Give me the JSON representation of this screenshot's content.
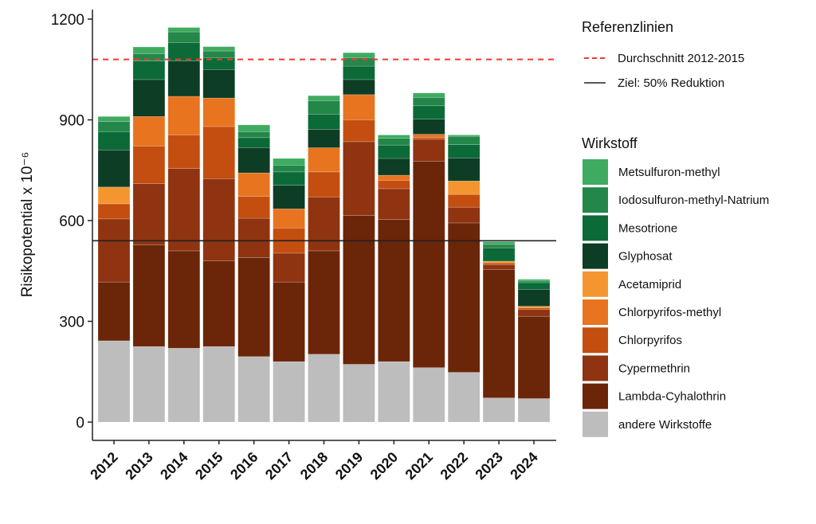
{
  "chart_data": {
    "type": "bar",
    "stacked": true,
    "ylabel": "Risikopotential x 10⁻⁶",
    "ylim": [
      0,
      1200
    ],
    "yticks": [
      0,
      300,
      600,
      900,
      1200
    ],
    "categories": [
      "2012",
      "2013",
      "2014",
      "2015",
      "2016",
      "2017",
      "2018",
      "2019",
      "2020",
      "2021",
      "2022",
      "2023",
      "2024"
    ],
    "series": [
      {
        "name": "andere Wirkstoffe",
        "color": "#bdbdbd",
        "values": [
          242,
          225,
          220,
          225,
          195,
          180,
          202,
          172,
          180,
          162,
          148,
          72,
          70
        ]
      },
      {
        "name": "Lambda-Cyhalothrin",
        "color": "#6b2508",
        "values": [
          175,
          303,
          290,
          255,
          295,
          237,
          308,
          443,
          423,
          615,
          445,
          382,
          245
        ]
      },
      {
        "name": "Cypermethrin",
        "color": "#8f3311",
        "values": [
          188,
          182,
          245,
          245,
          117,
          86,
          160,
          220,
          92,
          65,
          47,
          15,
          20
        ]
      },
      {
        "name": "Chlorpyrifos",
        "color": "#c44e0f",
        "values": [
          45,
          112,
          100,
          155,
          65,
          75,
          75,
          65,
          25,
          5,
          38,
          5,
          5
        ]
      },
      {
        "name": "Chlorpyrifos-methyl",
        "color": "#e8741f",
        "values": [
          0,
          88,
          115,
          85,
          70,
          57,
          72,
          75,
          15,
          10,
          0,
          0,
          0
        ]
      },
      {
        "name": "Acetamiprid",
        "color": "#f4952f",
        "values": [
          50,
          0,
          0,
          0,
          0,
          0,
          0,
          0,
          0,
          0,
          40,
          5,
          5
        ]
      },
      {
        "name": "Glyphosat",
        "color": "#0d3d24",
        "values": [
          110,
          110,
          105,
          85,
          75,
          70,
          55,
          45,
          50,
          45,
          68,
          0,
          50
        ]
      },
      {
        "name": "Mesotrione",
        "color": "#0b6a37",
        "values": [
          55,
          55,
          55,
          35,
          30,
          40,
          45,
          40,
          40,
          40,
          40,
          40,
          20
        ]
      },
      {
        "name": "Iodosulfuron-methyl-Natrium",
        "color": "#24874a",
        "values": [
          30,
          22,
          32,
          20,
          18,
          20,
          40,
          25,
          20,
          25,
          25,
          10,
          5
        ]
      },
      {
        "name": "Metsulfuron-methyl",
        "color": "#3fab60",
        "values": [
          15,
          20,
          13,
          13,
          20,
          20,
          15,
          15,
          10,
          13,
          4,
          8,
          5
        ]
      }
    ],
    "reference_lines": [
      {
        "name": "Durchschnitt 2012-2015",
        "value": 1080,
        "color": "#ee3b30",
        "style": "dashed"
      },
      {
        "name": "Ziel: 50% Reduktion",
        "value": 540,
        "color": "#222222",
        "style": "solid"
      }
    ],
    "legend_ref_title": "Referenzlinien",
    "legend_fill_title": "Wirkstoff",
    "legend_fill_order": [
      "Metsulfuron-methyl",
      "Iodosulfuron-methyl-Natrium",
      "Mesotrione",
      "Glyphosat",
      "Acetamiprid",
      "Chlorpyrifos-methyl",
      "Chlorpyrifos",
      "Cypermethrin",
      "Lambda-Cyhalothrin",
      "andere Wirkstoffe"
    ],
    "legend_placement": "right",
    "grid": false
  }
}
